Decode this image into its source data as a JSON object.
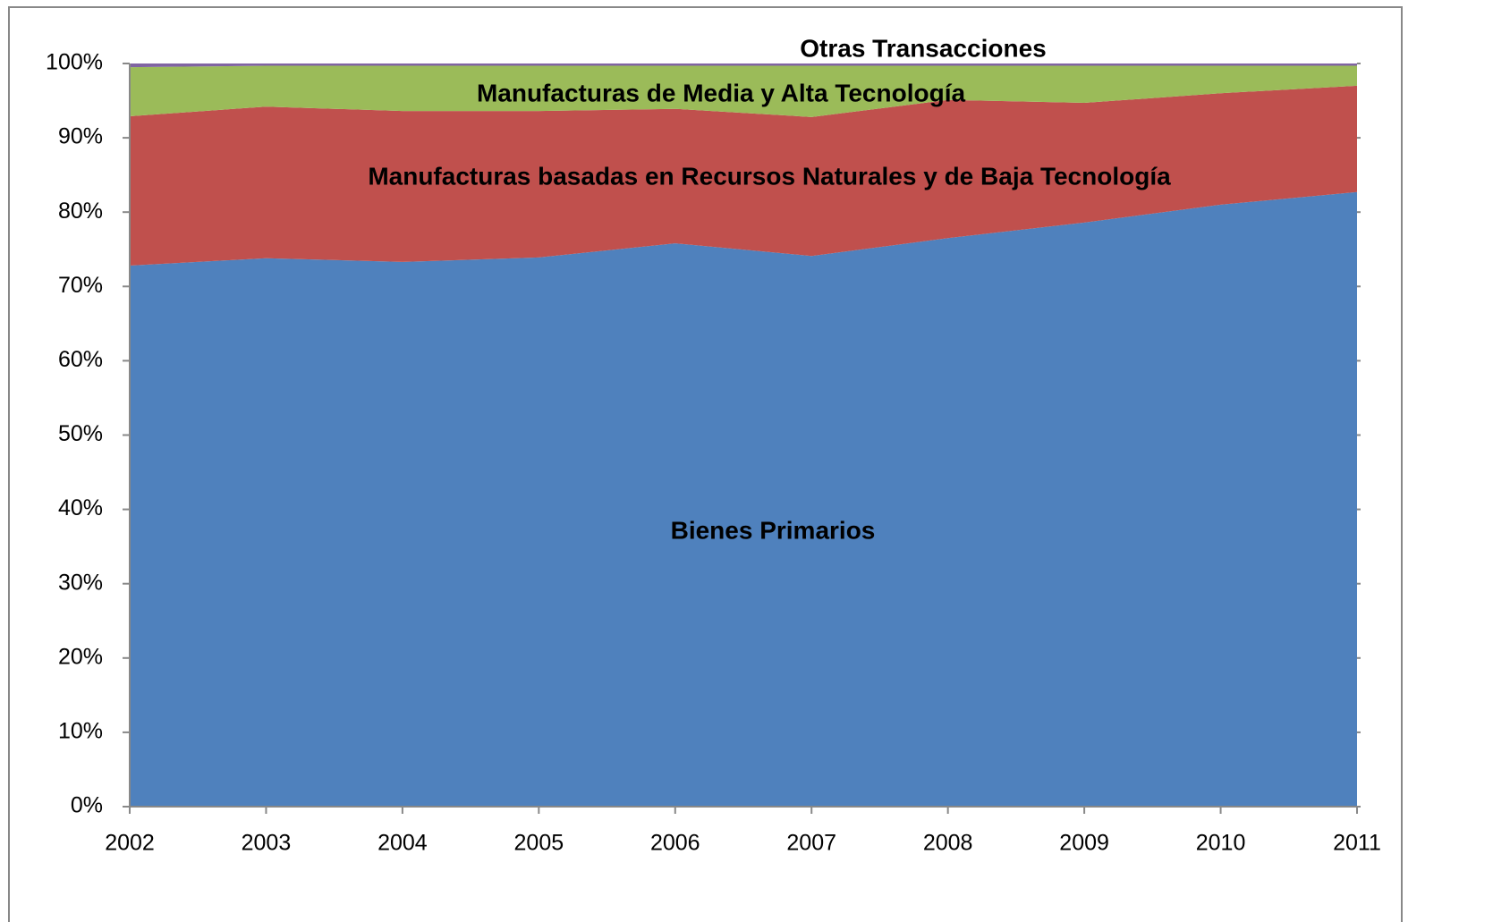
{
  "chart_data": {
    "type": "stacked_area",
    "categories": [
      "2002",
      "2003",
      "2004",
      "2005",
      "2006",
      "2007",
      "2008",
      "2009",
      "2010",
      "2011"
    ],
    "series": [
      {
        "name": "Bienes Primarios",
        "color": "#4f81bd",
        "values": [
          72.8,
          73.8,
          73.3,
          73.9,
          75.8,
          74.1,
          76.5,
          78.6,
          81.0,
          82.7
        ]
      },
      {
        "name": "Manufacturas basadas en Recursos Naturales y de Baja Tecnología",
        "color": "#c0504d",
        "values": [
          20.1,
          20.4,
          20.3,
          19.7,
          18.1,
          18.7,
          18.6,
          16.1,
          15.0,
          14.3
        ]
      },
      {
        "name": "Manufacturas de Media y Alta Tecnología",
        "color": "#9bbb59",
        "values": [
          6.6,
          5.5,
          6.1,
          6.1,
          5.8,
          6.9,
          4.6,
          5.0,
          3.7,
          2.7
        ]
      },
      {
        "name": "Otras Transacciones",
        "color": "#8064a2",
        "values": [
          0.5,
          0.3,
          0.3,
          0.3,
          0.3,
          0.3,
          0.3,
          0.3,
          0.3,
          0.3
        ]
      }
    ],
    "ylim": [
      0,
      100
    ],
    "yticks": [
      {
        "value": 0,
        "label": "0%"
      },
      {
        "value": 10,
        "label": "10%"
      },
      {
        "value": 20,
        "label": "20%"
      },
      {
        "value": 30,
        "label": "30%"
      },
      {
        "value": 40,
        "label": "40%"
      },
      {
        "value": 50,
        "label": "50%"
      },
      {
        "value": 60,
        "label": "60%"
      },
      {
        "value": 70,
        "label": "70%"
      },
      {
        "value": 80,
        "label": "80%"
      },
      {
        "value": 90,
        "label": "90%"
      },
      {
        "value": 100,
        "label": "100%"
      }
    ],
    "grid": false
  }
}
